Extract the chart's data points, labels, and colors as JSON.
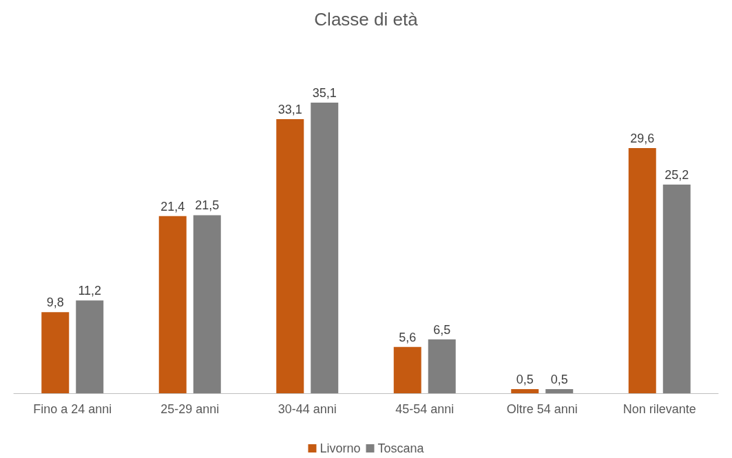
{
  "chart_data": {
    "type": "bar",
    "title": "Classe di età",
    "categories": [
      "Fino a 24 anni",
      "25-29 anni",
      "30-44 anni",
      "45-54 anni",
      "Oltre 54 anni",
      "Non rilevante"
    ],
    "series": [
      {
        "name": "Livorno",
        "color": "#c55a11",
        "values": [
          9.8,
          21.4,
          33.1,
          5.6,
          0.5,
          29.6
        ],
        "value_labels": [
          "9,8",
          "21,4",
          "33,1",
          "5,6",
          "0,5",
          "29,6"
        ]
      },
      {
        "name": "Toscana",
        "color": "#7f7f7f",
        "values": [
          11.2,
          21.5,
          35.1,
          6.5,
          0.5,
          25.2
        ],
        "value_labels": [
          "11,2",
          "21,5",
          "35,1",
          "6,5",
          "0,5",
          "25,2"
        ]
      }
    ],
    "grid": false,
    "legend": "bottom",
    "tick_labels": "x"
  }
}
